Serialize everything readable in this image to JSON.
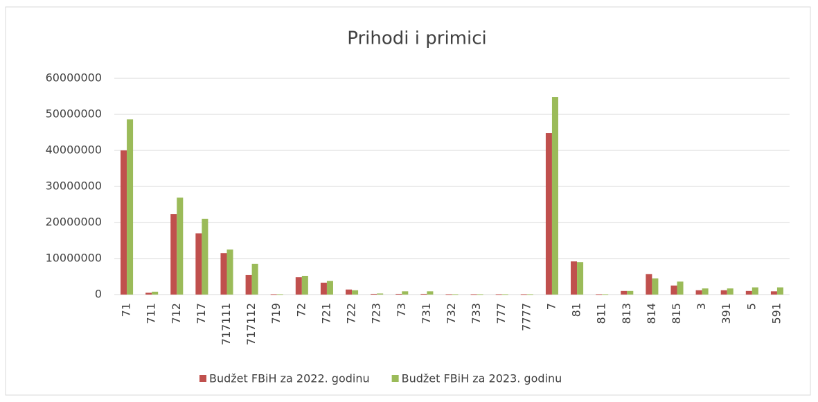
{
  "chart_data": {
    "type": "bar",
    "title": "Prihodi i primici",
    "categories": [
      "71",
      "711",
      "712",
      "717",
      "717111",
      "717112",
      "719",
      "72",
      "721",
      "722",
      "723",
      "73",
      "731",
      "732",
      "733",
      "777",
      "7777",
      "7",
      "81",
      "811",
      "813",
      "814",
      "815",
      "3",
      "391",
      "5",
      "591"
    ],
    "series": [
      {
        "name": "Budžet FBiH za 2022. godinu",
        "color": "#c0504d",
        "values": [
          40000000,
          500000,
          22300000,
          17000000,
          11500000,
          5400000,
          100000,
          4800000,
          3300000,
          1400000,
          200000,
          200000,
          200000,
          100000,
          100000,
          100000,
          100000,
          44800000,
          9200000,
          100000,
          1000000,
          5700000,
          2500000,
          1200000,
          1200000,
          1000000,
          900000
        ]
      },
      {
        "name": "Budžet FBiH za 2023. godinu",
        "color": "#9bbb59",
        "values": [
          48600000,
          800000,
          26900000,
          21000000,
          12500000,
          8500000,
          100000,
          5200000,
          3800000,
          1200000,
          300000,
          900000,
          900000,
          100000,
          100000,
          100000,
          100000,
          54800000,
          9000000,
          100000,
          1000000,
          4500000,
          3600000,
          1700000,
          1700000,
          2000000,
          2000000
        ]
      }
    ],
    "ylim": [
      0,
      60000000
    ],
    "yticks": [
      0,
      10000000,
      20000000,
      30000000,
      40000000,
      50000000,
      60000000
    ],
    "grid": true,
    "legend": "bottom"
  }
}
